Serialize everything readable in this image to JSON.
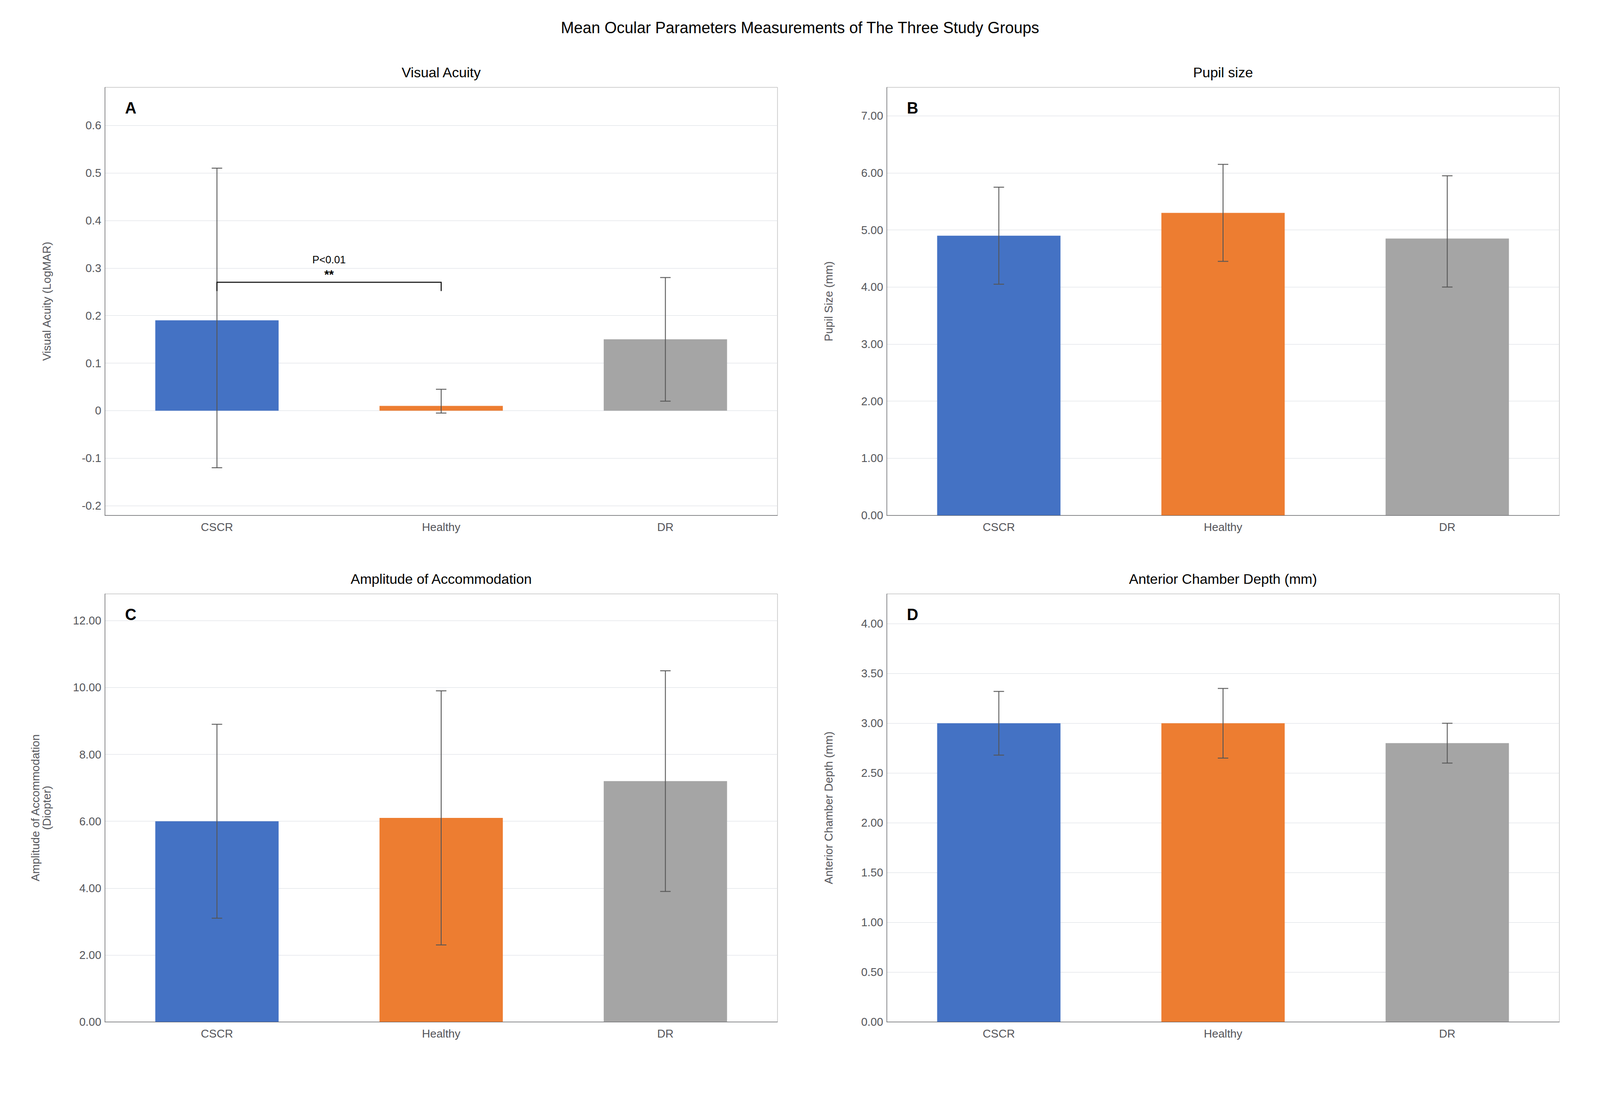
{
  "title": "Mean Ocular Parameters Measurements of The Three Study Groups",
  "chart_data": [
    {
      "type": "bar",
      "label": "A",
      "title": "Visual Acuity",
      "ylabel": "Visual Acuity (LogMAR)",
      "categories": [
        "CSCR",
        "Healthy",
        "DR"
      ],
      "colors": [
        "#4472C4",
        "#ED7D31",
        "#A5A5A5"
      ],
      "values": [
        0.19,
        0.01,
        0.15
      ],
      "errors_pos": [
        0.32,
        0.035,
        0.13
      ],
      "errors_neg": [
        0.31,
        0.015,
        0.13
      ],
      "ylim": [
        -0.22,
        0.68
      ],
      "yticks": [
        -0.2,
        -0.1,
        0,
        0.1,
        0.2,
        0.3,
        0.4,
        0.5,
        0.6
      ],
      "grid": true,
      "significance": {
        "from": "CSCR",
        "to": "Healthy",
        "y": 0.27,
        "stars": "**",
        "label": "P<0.01"
      }
    },
    {
      "type": "bar",
      "label": "B",
      "title": "Pupil size",
      "ylabel": "Pupil Size (mm)",
      "categories": [
        "CSCR",
        "Healthy",
        "DR"
      ],
      "colors": [
        "#4472C4",
        "#ED7D31",
        "#A5A5A5"
      ],
      "values": [
        4.9,
        5.3,
        4.85
      ],
      "errors_pos": [
        0.85,
        0.85,
        1.1
      ],
      "errors_neg": [
        0.85,
        0.85,
        0.85
      ],
      "ylim": [
        0.0,
        7.5
      ],
      "yticks": [
        {
          "value": 0,
          "label": "0.00"
        },
        {
          "value": 1,
          "label": "1.00"
        },
        {
          "value": 2,
          "label": "2.00"
        },
        {
          "value": 3,
          "label": "3.00"
        },
        {
          "value": 4,
          "label": "4.00"
        },
        {
          "value": 5,
          "label": "5.00"
        },
        {
          "value": 6,
          "label": "6.00"
        },
        {
          "value": 7,
          "label": "7.00"
        }
      ],
      "grid": true
    },
    {
      "type": "bar",
      "label": "C",
      "title": "Amplitude of Accommodation",
      "ylabel": "Amplitude of Accommodation\n(Diopter)",
      "categories": [
        "CSCR",
        "Healthy",
        "DR"
      ],
      "colors": [
        "#4472C4",
        "#ED7D31",
        "#A5A5A5"
      ],
      "values": [
        6.0,
        6.1,
        7.2
      ],
      "errors_pos": [
        2.9,
        3.8,
        3.3
      ],
      "errors_neg": [
        2.9,
        3.8,
        3.3
      ],
      "ylim": [
        0.0,
        12.8
      ],
      "yticks": [
        {
          "value": 0,
          "label": "0.00"
        },
        {
          "value": 2,
          "label": "2.00"
        },
        {
          "value": 4,
          "label": "4.00"
        },
        {
          "value": 6,
          "label": "6.00"
        },
        {
          "value": 8,
          "label": "8.00"
        },
        {
          "value": 10,
          "label": "10.00"
        },
        {
          "value": 12,
          "label": "12.00"
        }
      ],
      "grid": true
    },
    {
      "type": "bar",
      "label": "D",
      "title": "Anterior Chamber Depth (mm)",
      "ylabel": "Anterior Chamber Depth (mm)",
      "categories": [
        "CSCR",
        "Healthy",
        "DR"
      ],
      "colors": [
        "#4472C4",
        "#ED7D31",
        "#A5A5A5"
      ],
      "values": [
        3.0,
        3.0,
        2.8
      ],
      "errors_pos": [
        0.32,
        0.35,
        0.2
      ],
      "errors_neg": [
        0.32,
        0.35,
        0.2
      ],
      "ylim": [
        0.0,
        4.3
      ],
      "yticks": [
        {
          "value": 0,
          "label": "0.00"
        },
        {
          "value": 0.5,
          "label": "0.50"
        },
        {
          "value": 1,
          "label": "1.00"
        },
        {
          "value": 1.5,
          "label": "1.50"
        },
        {
          "value": 2,
          "label": "2.00"
        },
        {
          "value": 2.5,
          "label": "2.50"
        },
        {
          "value": 3,
          "label": "3.00"
        },
        {
          "value": 3.5,
          "label": "3.50"
        },
        {
          "value": 4,
          "label": "4.00"
        }
      ],
      "grid": true
    }
  ]
}
